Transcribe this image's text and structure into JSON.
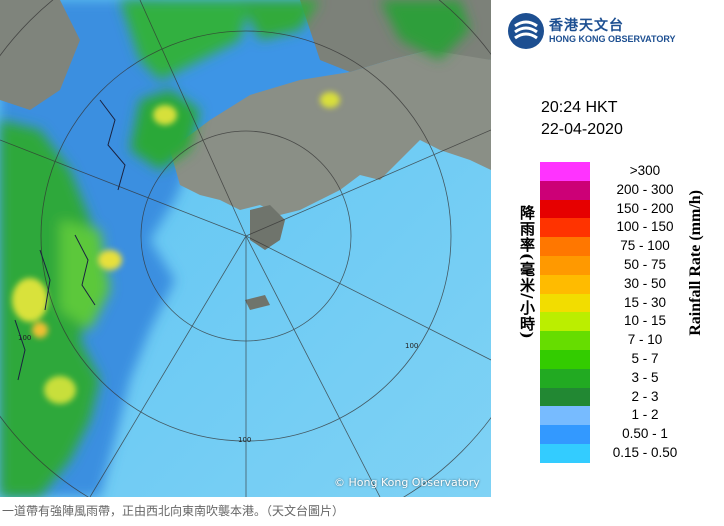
{
  "radar": {
    "range_rings_km": [
      "100",
      "100",
      "100"
    ],
    "copyright": "© Hong Kong Observatory"
  },
  "header": {
    "logo_cn": "香港天文台",
    "logo_en": "HONG KONG OBSERVATORY",
    "time": "20:24 HKT",
    "date": "22-04-2020"
  },
  "legend": {
    "title_cn": "降雨率(毫米/小時)",
    "title_en": "Rainfall Rate (mm/h)",
    "bands": [
      {
        "label": ">300",
        "color": "#ff33ff"
      },
      {
        "label": "200 - 300",
        "color": "#cc0077"
      },
      {
        "label": "150 - 200",
        "color": "#e60000"
      },
      {
        "label": "100 - 150",
        "color": "#ff3300"
      },
      {
        "label": "75 - 100",
        "color": "#ff7700"
      },
      {
        "label": "50 - 75",
        "color": "#ff9900"
      },
      {
        "label": "30 - 50",
        "color": "#ffbb00"
      },
      {
        "label": "15 - 30",
        "color": "#f2dd00"
      },
      {
        "label": "10 - 15",
        "color": "#bbee00"
      },
      {
        "label": "7 - 10",
        "color": "#66dd00"
      },
      {
        "label": "5 - 7",
        "color": "#33cc00"
      },
      {
        "label": "3 - 5",
        "color": "#22aa22"
      },
      {
        "label": "2 - 3",
        "color": "#228833"
      },
      {
        "label": "1 - 2",
        "color": "#77bbff"
      },
      {
        "label": "0.50 - 1",
        "color": "#3399ff"
      },
      {
        "label": "0.15 - 0.50",
        "color": "#33ccff"
      }
    ]
  },
  "caption": "一道帶有強陣風雨帶，正由西北向東南吹襲本港。（天文台圖片）"
}
